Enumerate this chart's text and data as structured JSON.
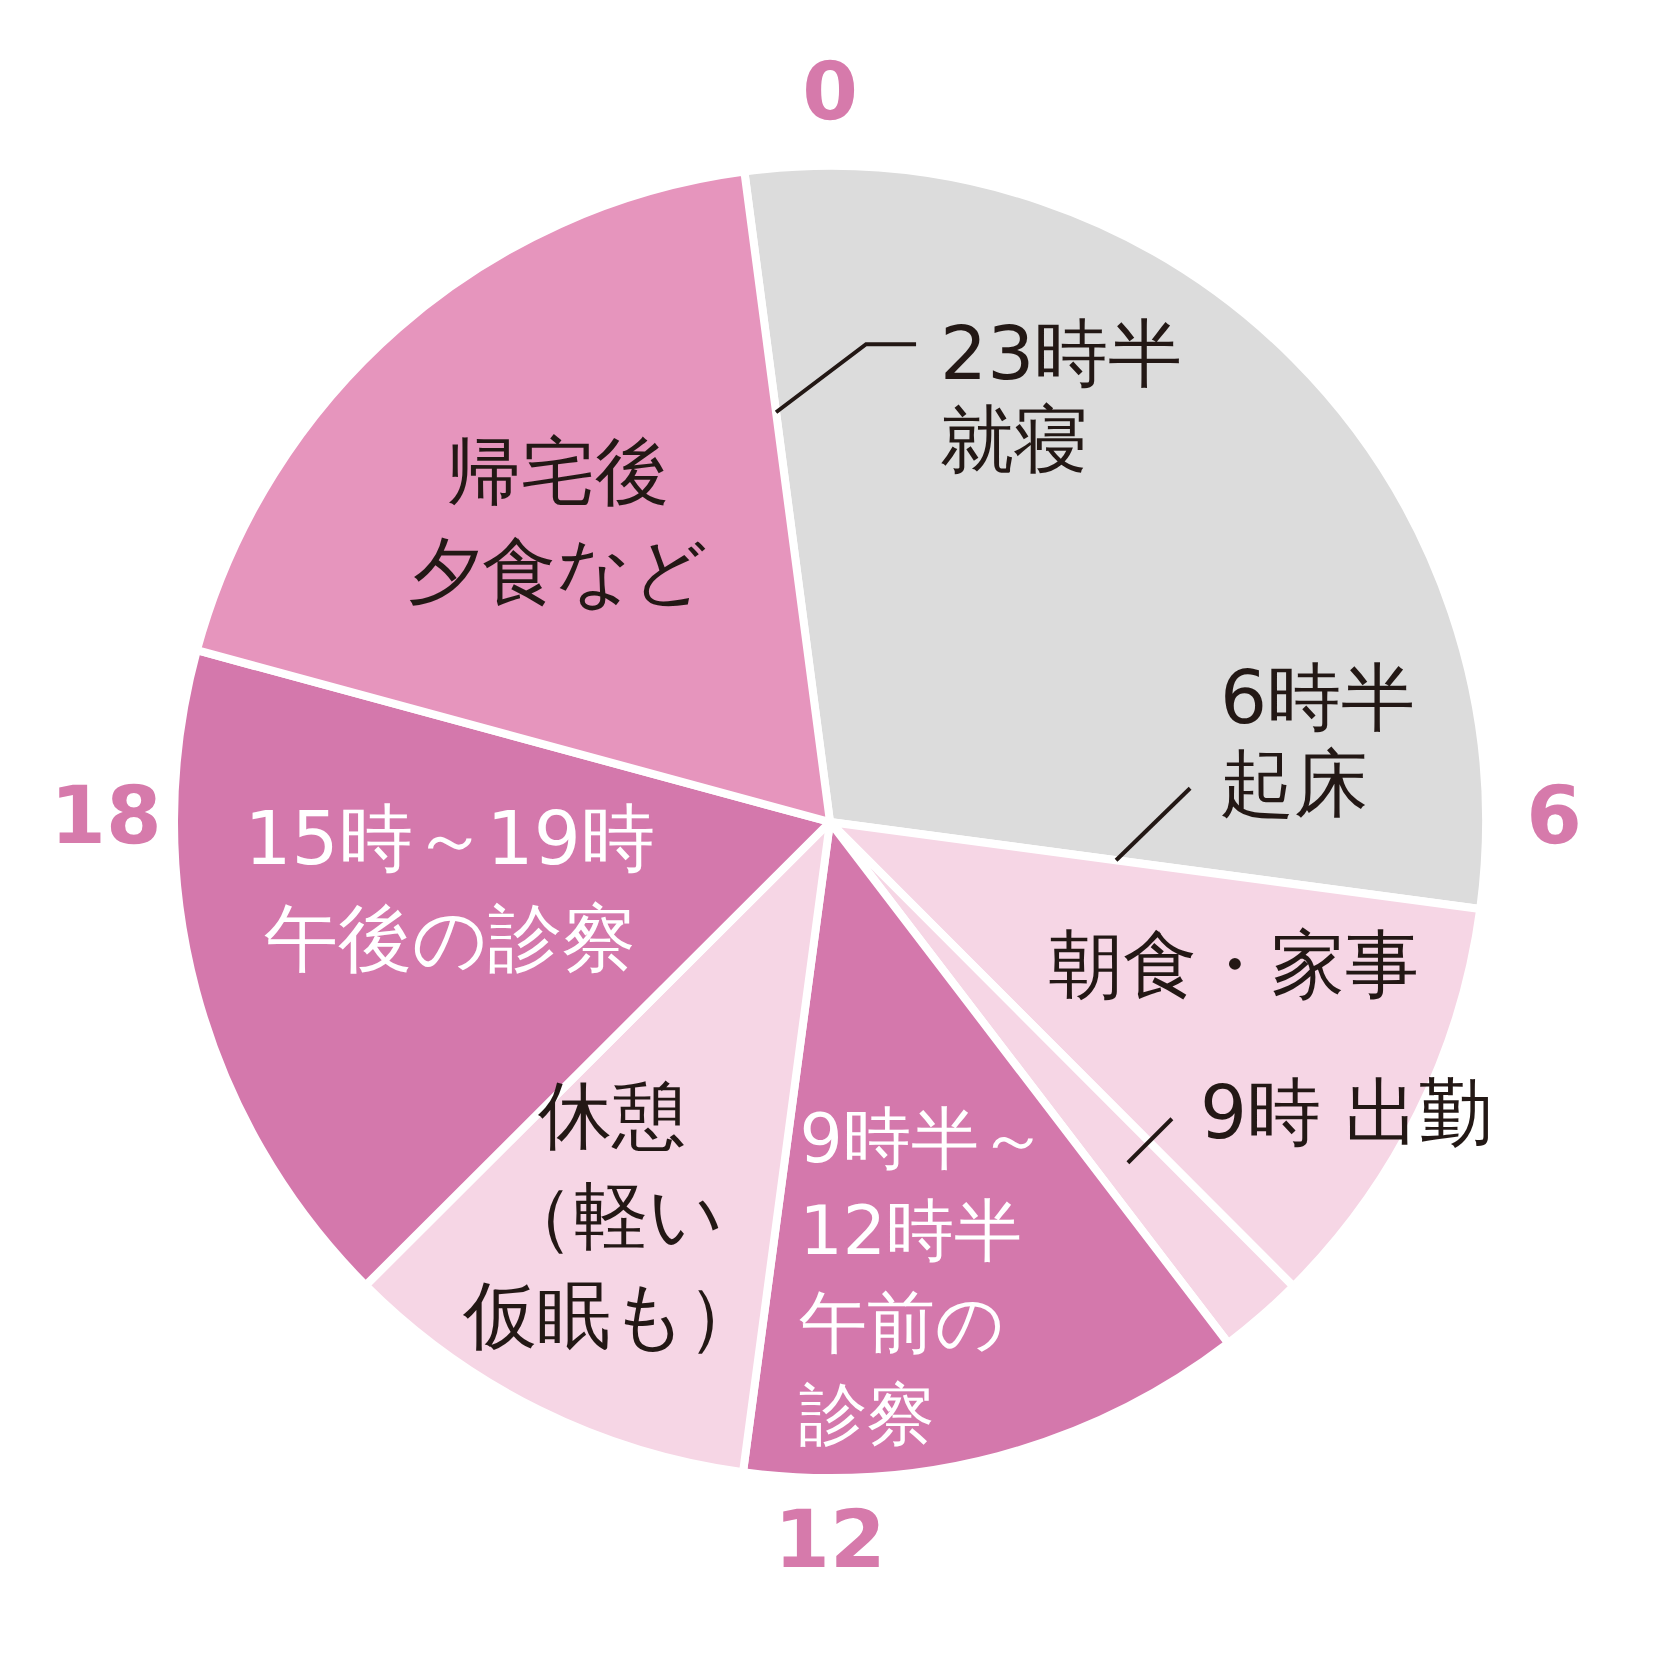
{
  "chart_data": {
    "type": "pie",
    "categories": [
      null,
      "朝食・家事",
      "9時 出勤",
      "9時半～12時半午前の診察",
      "休憩（軽い仮眠も）",
      "15時～19時午後の診察",
      "帰宅後夕食など"
    ],
    "values": [
      29.2,
      10.4,
      2.1,
      12.5,
      10.4,
      16.7,
      18.7
    ],
    "colors": [
      "#dcdcdc",
      "#f6d6e5",
      "#f6d6e5",
      "#d478ac",
      "#f6d6e5",
      "#d478ac",
      "#e695bd"
    ],
    "annotations": [
      "0",
      "6",
      "12",
      "18",
      "23時半就寝",
      "6時半起床"
    ]
  }
}
